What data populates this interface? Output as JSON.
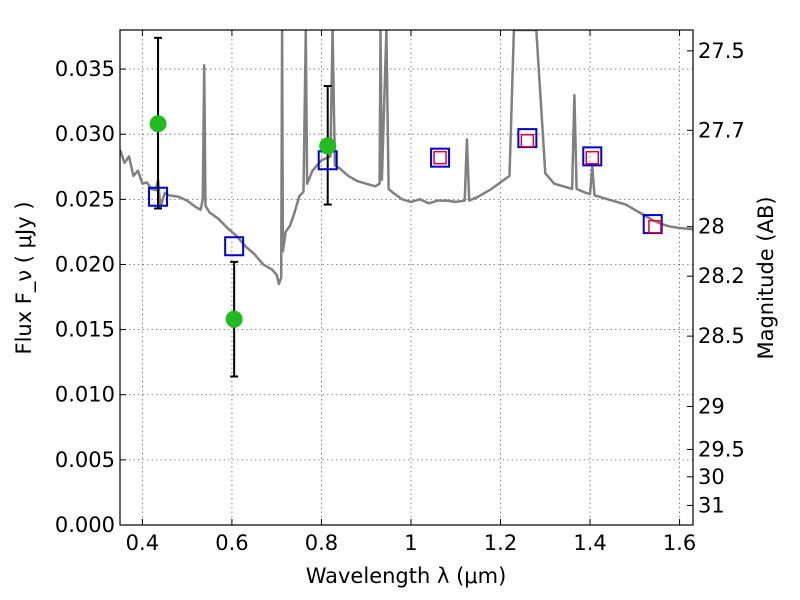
{
  "chart_data": {
    "type": "scatter",
    "title": "",
    "xlabel": "Wavelength  λ (μm)",
    "ylabel": "Flux  F_ν  ( μJy )",
    "ylabel_right": "Magnitude (AB)",
    "xlim": [
      0.35,
      1.63
    ],
    "ylim": [
      0.0,
      0.038
    ],
    "grid": true,
    "x_ticks": [
      0.4,
      0.6,
      0.8,
      1.0,
      1.2,
      1.4,
      1.6
    ],
    "x_tick_labels": [
      "0.4",
      "0.6",
      "0.8",
      "1",
      "1.2",
      "1.4",
      "1.6"
    ],
    "y_ticks": [
      0.0,
      0.005,
      0.01,
      0.015,
      0.02,
      0.025,
      0.03,
      0.035
    ],
    "y_tick_labels": [
      "0.000",
      "0.005",
      "0.010",
      "0.015",
      "0.020",
      "0.025",
      "0.030",
      "0.035"
    ],
    "right_ticks": [
      {
        "label": "27.5",
        "flux": 0.0364
      },
      {
        "label": "27.7",
        "flux": 0.0303
      },
      {
        "label": "28",
        "flux": 0.0229
      },
      {
        "label": "28.2",
        "flux": 0.0191
      },
      {
        "label": "28.5",
        "flux": 0.0145
      },
      {
        "label": "29",
        "flux": 0.0091
      },
      {
        "label": "29.5",
        "flux": 0.0058
      },
      {
        "label": "30",
        "flux": 0.0037
      },
      {
        "label": "31",
        "flux": 0.0015
      }
    ],
    "series": [
      {
        "kind": "model_spectrum",
        "color": "#808080",
        "points": [
          [
            0.35,
            0.0288
          ],
          [
            0.36,
            0.0278
          ],
          [
            0.37,
            0.0283
          ],
          [
            0.38,
            0.0268
          ],
          [
            0.39,
            0.0272
          ],
          [
            0.4,
            0.0262
          ],
          [
            0.41,
            0.0263
          ],
          [
            0.42,
            0.0258
          ],
          [
            0.43,
            0.0257
          ],
          [
            0.435,
            0.0265
          ],
          [
            0.44,
            0.0244
          ],
          [
            0.45,
            0.0255
          ],
          [
            0.46,
            0.0253
          ],
          [
            0.48,
            0.0252
          ],
          [
            0.5,
            0.0249
          ],
          [
            0.52,
            0.0244
          ],
          [
            0.53,
            0.0242
          ],
          [
            0.535,
            0.025
          ],
          [
            0.538,
            0.0353
          ],
          [
            0.541,
            0.0245
          ],
          [
            0.55,
            0.024
          ],
          [
            0.57,
            0.0235
          ],
          [
            0.59,
            0.0228
          ],
          [
            0.61,
            0.0222
          ],
          [
            0.63,
            0.0214
          ],
          [
            0.65,
            0.0208
          ],
          [
            0.67,
            0.02
          ],
          [
            0.69,
            0.0196
          ],
          [
            0.7,
            0.0192
          ],
          [
            0.705,
            0.0185
          ],
          [
            0.71,
            0.019
          ],
          [
            0.712,
            0.038
          ],
          [
            0.714,
            0.021
          ],
          [
            0.72,
            0.0225
          ],
          [
            0.73,
            0.023
          ],
          [
            0.74,
            0.024
          ],
          [
            0.75,
            0.0252
          ],
          [
            0.76,
            0.0256
          ],
          [
            0.765,
            0.038
          ],
          [
            0.768,
            0.0262
          ],
          [
            0.78,
            0.0272
          ],
          [
            0.8,
            0.028
          ],
          [
            0.82,
            0.0283
          ],
          [
            0.825,
            0.038
          ],
          [
            0.83,
            0.0276
          ],
          [
            0.84,
            0.0274
          ],
          [
            0.86,
            0.0268
          ],
          [
            0.88,
            0.0264
          ],
          [
            0.9,
            0.0262
          ],
          [
            0.92,
            0.026
          ],
          [
            0.93,
            0.0262
          ],
          [
            0.932,
            0.038
          ],
          [
            0.935,
            0.0265
          ],
          [
            0.945,
            0.038
          ],
          [
            0.95,
            0.0258
          ],
          [
            0.96,
            0.0255
          ],
          [
            0.98,
            0.025
          ],
          [
            1.0,
            0.0248
          ],
          [
            1.02,
            0.025
          ],
          [
            1.04,
            0.0247
          ],
          [
            1.06,
            0.0249
          ],
          [
            1.08,
            0.0249
          ],
          [
            1.1,
            0.0248
          ],
          [
            1.12,
            0.0249
          ],
          [
            1.125,
            0.0296
          ],
          [
            1.13,
            0.0249
          ],
          [
            1.15,
            0.0252
          ],
          [
            1.18,
            0.0258
          ],
          [
            1.2,
            0.0263
          ],
          [
            1.22,
            0.0268
          ],
          [
            1.23,
            0.038
          ],
          [
            1.26,
            0.038
          ],
          [
            1.28,
            0.038
          ],
          [
            1.3,
            0.027
          ],
          [
            1.32,
            0.0262
          ],
          [
            1.34,
            0.026
          ],
          [
            1.36,
            0.0258
          ],
          [
            1.365,
            0.033
          ],
          [
            1.37,
            0.0258
          ],
          [
            1.39,
            0.0255
          ],
          [
            1.4,
            0.0254
          ],
          [
            1.405,
            0.0275
          ],
          [
            1.41,
            0.0253
          ],
          [
            1.42,
            0.0252
          ],
          [
            1.44,
            0.025
          ],
          [
            1.46,
            0.0248
          ],
          [
            1.48,
            0.0246
          ],
          [
            1.5,
            0.0242
          ],
          [
            1.52,
            0.0238
          ],
          [
            1.54,
            0.0234
          ],
          [
            1.56,
            0.0231
          ],
          [
            1.58,
            0.0229
          ],
          [
            1.6,
            0.0228
          ],
          [
            1.63,
            0.0227
          ]
        ]
      },
      {
        "kind": "model_photometry",
        "marker": "open-square",
        "color": "#0000cc",
        "x": [
          0.435,
          0.605,
          0.814,
          1.065,
          1.26,
          1.405,
          1.54
        ],
        "y": [
          0.0252,
          0.0214,
          0.028,
          0.0282,
          0.0297,
          0.0283,
          0.0231
        ]
      },
      {
        "kind": "model_photometry_small",
        "marker": "open-square",
        "color": "#dd0033",
        "x": [
          1.065,
          1.26,
          1.405,
          1.545
        ],
        "y": [
          0.0282,
          0.0295,
          0.0282,
          0.0229
        ]
      },
      {
        "kind": "observed",
        "marker": "filled-circle",
        "color": "#22bb22",
        "x": [
          0.435,
          0.605,
          0.814
        ],
        "y": [
          0.0308,
          0.0158,
          0.0291
        ],
        "yerr_low": [
          0.0243,
          0.0114,
          0.0246
        ],
        "yerr_high": [
          0.0374,
          0.0202,
          0.0337
        ]
      }
    ]
  }
}
